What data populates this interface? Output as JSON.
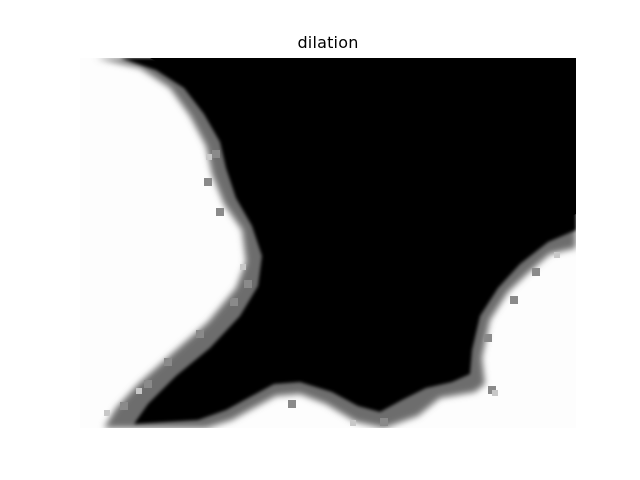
{
  "title": "dilation",
  "colors": {
    "background": "#ffffff",
    "foreground_dark": "#000000",
    "foreground_light": "#fdfdfd"
  }
}
